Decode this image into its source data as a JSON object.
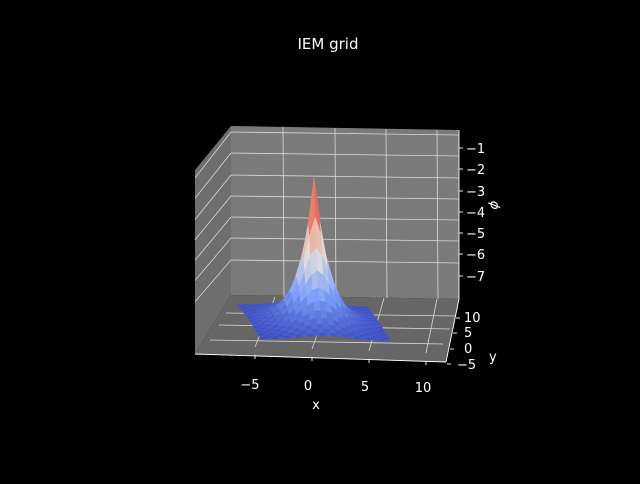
{
  "chart_data": {
    "type": "surface3d",
    "title": "IEM grid",
    "xlabel": "x",
    "ylabel": "y",
    "zlabel": "ϕ",
    "x_ticks": [
      "−5",
      "0",
      "5",
      "10"
    ],
    "y_ticks": [
      "−5",
      "0",
      "5",
      "10"
    ],
    "z_ticks": [
      "−1",
      "−2",
      "−3",
      "−4",
      "−5",
      "−6",
      "−7"
    ],
    "xlim": [
      -10,
      11.5
    ],
    "ylim": [
      -6,
      12
    ],
    "zlim": [
      -8.3,
      -0.7
    ],
    "peak": {
      "x": 2.5,
      "y": 3.5,
      "phi": -1.0
    },
    "base_phi": -8.0,
    "colormap": "coolwarm",
    "grid": true,
    "pane_color": "#7a7a7a",
    "background": "#000000"
  }
}
